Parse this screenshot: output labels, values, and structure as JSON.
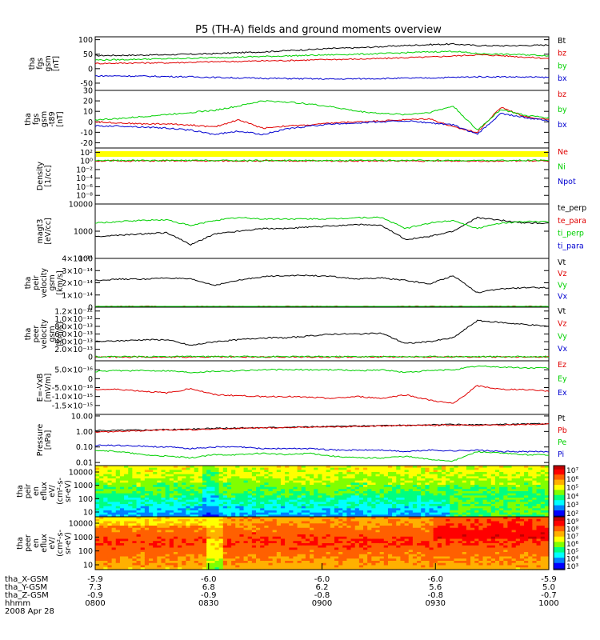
{
  "title": "P5 (TH-A) fields and ground moments overview",
  "footer": {
    "row_labels": [
      "tha_X-GSM",
      "tha_Y-GSM",
      "tha_Z-GSM",
      "hhmm",
      "2008 Apr 28"
    ],
    "columns": [
      {
        "x": "-5.9",
        "y": "7.3",
        "z": "-0.9",
        "t": "0800"
      },
      {
        "x": "-6.0",
        "y": "6.8",
        "z": "-0.9",
        "t": "0830"
      },
      {
        "x": "-6.0",
        "y": "6.2",
        "z": "-0.8",
        "t": "0900"
      },
      {
        "x": "-6.0",
        "y": "5.6",
        "z": "-0.8",
        "t": "0930"
      },
      {
        "x": "-5.9",
        "y": "5.0",
        "z": "-0.7",
        "t": "1000"
      }
    ]
  },
  "colors": {
    "black": "#000000",
    "red": "#e00000",
    "green": "#00d000",
    "blue": "#0000d0",
    "yellow": "#ffff00"
  },
  "chart_data": [
    {
      "type": "line",
      "ylabel": [
        "tha",
        "fgs",
        "gsm",
        "[nT]"
      ],
      "yticks": [
        "100",
        "50",
        "0",
        "-50"
      ],
      "ytick_values": [
        100,
        50,
        0,
        -50
      ],
      "ylim": [
        -75,
        110
      ],
      "series": [
        {
          "name": "Bt",
          "color": "#000000",
          "y": [
            45,
            46,
            47,
            48,
            50,
            52,
            55,
            58,
            62,
            66,
            70,
            72,
            76,
            80,
            83,
            85,
            80,
            79,
            80,
            82
          ]
        },
        {
          "name": "bz",
          "color": "#e00000",
          "y": [
            18,
            19,
            20,
            20,
            22,
            24,
            25,
            27,
            28,
            30,
            32,
            33,
            35,
            38,
            40,
            44,
            48,
            45,
            40,
            35
          ]
        },
        {
          "name": "by",
          "color": "#00d000",
          "y": [
            30,
            31,
            33,
            34,
            36,
            38,
            40,
            42,
            44,
            46,
            48,
            50,
            52,
            55,
            58,
            60,
            52,
            50,
            48,
            45
          ]
        },
        {
          "name": "bx",
          "color": "#0000d0",
          "y": [
            -25,
            -25,
            -26,
            -27,
            -28,
            -30,
            -32,
            -33,
            -34,
            -35,
            -36,
            -35,
            -34,
            -33,
            -32,
            -30,
            -28,
            -28,
            -29,
            -30
          ]
        }
      ]
    },
    {
      "type": "line",
      "ylabel": [
        "tha",
        "fgs",
        "gsm",
        "-t89",
        "[nT]"
      ],
      "yticks": [
        "30",
        "20",
        "10",
        "0",
        "-10",
        "-20"
      ],
      "ytick_values": [
        30,
        20,
        10,
        0,
        -10,
        -20
      ],
      "ylim": [
        -25,
        30
      ],
      "series": [
        {
          "name": "bz",
          "color": "#e00000",
          "y": [
            0,
            -1,
            -2,
            -2,
            -3,
            -5,
            2,
            -6,
            -4,
            -3,
            -1,
            0,
            1,
            2,
            3,
            -5,
            -10,
            14,
            5,
            2
          ]
        },
        {
          "name": "by",
          "color": "#00d000",
          "y": [
            2,
            3,
            5,
            7,
            9,
            11,
            15,
            20,
            19,
            17,
            14,
            10,
            8,
            7,
            9,
            15,
            -8,
            12,
            6,
            4
          ]
        },
        {
          "name": "bx",
          "color": "#0000d0",
          "y": [
            -4,
            -4,
            -5,
            -6,
            -8,
            -12,
            -9,
            -12,
            -7,
            -4,
            -2,
            -1,
            0,
            1,
            -1,
            -3,
            -12,
            8,
            4,
            1
          ]
        }
      ]
    },
    {
      "type": "line",
      "log": true,
      "ylabel": [
        "Density",
        "[1/cc]"
      ],
      "yticks": [
        "10²",
        "10⁰",
        "10⁻²",
        "10⁻⁴",
        "10⁻⁶",
        "10⁻⁸"
      ],
      "ytick_values": [
        2,
        0,
        -2,
        -4,
        -6,
        -8
      ],
      "ylim": [
        -10,
        3
      ],
      "series": [
        {
          "name": "Ne",
          "color": "#e00000",
          "y": [
            0,
            0,
            0,
            0,
            0,
            0,
            0,
            0,
            0,
            0,
            0,
            0,
            0,
            0,
            0,
            0,
            0,
            0,
            0,
            0
          ]
        },
        {
          "name": "Ni",
          "color": "#00d000",
          "y": [
            0.1,
            0.1,
            0.1,
            0.1,
            0.1,
            0.1,
            0.1,
            0.1,
            0.1,
            0.1,
            0.1,
            0.1,
            0.1,
            0.1,
            0.1,
            0.1,
            0.1,
            0.1,
            0.1,
            0.1
          ]
        },
        {
          "name": "Npot",
          "color": "#0000d0",
          "y": []
        }
      ]
    },
    {
      "type": "line",
      "log": true,
      "ylabel": [
        "magt3",
        "[eV/cc]"
      ],
      "yticks": [
        "10000",
        "1000",
        "100"
      ],
      "ytick_values": [
        4,
        3,
        2
      ],
      "ylim": [
        2,
        4
      ],
      "series": [
        {
          "name": "te_perp",
          "color": "#000000",
          "y": [
            2.8,
            2.85,
            2.9,
            2.95,
            2.5,
            2.9,
            3.0,
            3.1,
            3.1,
            3.15,
            3.2,
            3.25,
            3.2,
            2.7,
            2.8,
            3.0,
            3.5,
            3.4,
            3.3,
            3.3
          ]
        },
        {
          "name": "te_para",
          "color": "#e00000",
          "y": []
        },
        {
          "name": "ti_perp",
          "color": "#00d000",
          "y": [
            3.3,
            3.35,
            3.4,
            3.42,
            3.2,
            3.4,
            3.5,
            3.45,
            3.45,
            3.45,
            3.45,
            3.5,
            3.5,
            3.1,
            3.3,
            3.4,
            3.1,
            3.3,
            3.35,
            3.35
          ]
        },
        {
          "name": "ti_para",
          "color": "#0000d0",
          "y": []
        }
      ]
    },
    {
      "type": "line",
      "ylabel": [
        "tha",
        "peir",
        "velocity",
        "gsm",
        "[km/s]"
      ],
      "yticks": [
        "4×10⁻¹⁴",
        "3×10⁻¹⁴",
        "2×10⁻¹⁴",
        "1×10⁻¹⁴",
        "0"
      ],
      "ytick_values": [
        4,
        3,
        2,
        1,
        0
      ],
      "ylim": [
        0,
        4
      ],
      "series": [
        {
          "name": "Vt",
          "color": "#000000",
          "y": [
            2.2,
            2.3,
            2.3,
            2.4,
            2.3,
            1.8,
            2.2,
            2.5,
            2.6,
            2.6,
            2.5,
            2.3,
            2.4,
            2.2,
            1.9,
            2.6,
            1.2,
            1.5,
            1.6,
            1.6
          ]
        },
        {
          "name": "Vz",
          "color": "#e00000",
          "y": [
            0.05,
            0.05,
            0.05,
            0.05,
            0.05,
            0.05,
            0.05,
            0.05,
            0.05,
            0.05,
            0.05,
            0.05,
            0.05,
            0.05,
            0.05,
            0.05,
            0.05,
            0.05,
            0.05,
            0.05
          ]
        },
        {
          "name": "Vy",
          "color": "#00d000",
          "y": [
            0,
            0,
            0,
            0,
            0,
            0,
            0,
            0,
            0,
            0,
            0,
            0,
            0,
            0,
            0,
            0,
            0,
            0,
            0,
            0
          ]
        },
        {
          "name": "Vx",
          "color": "#0000d0",
          "y": []
        }
      ]
    },
    {
      "type": "line",
      "ylabel": [
        "tha",
        "peer",
        "velocity",
        "gsm",
        "[km/s]"
      ],
      "yticks": [
        "1.2×10⁻¹²",
        "1.0×10⁻¹²",
        "8.0×10⁻¹³",
        "6.0×10⁻¹³",
        "4.0×10⁻¹³",
        "2.0×10⁻¹³",
        "0"
      ],
      "ytick_values": [
        1.2,
        1.0,
        0.8,
        0.6,
        0.4,
        0.2,
        0
      ],
      "ylim": [
        -0.1,
        1.3
      ],
      "series": [
        {
          "name": "Vt",
          "color": "#000000",
          "y": [
            0.4,
            0.42,
            0.45,
            0.45,
            0.3,
            0.4,
            0.45,
            0.5,
            0.5,
            0.55,
            0.6,
            0.6,
            0.62,
            0.35,
            0.4,
            0.5,
            0.95,
            0.9,
            0.85,
            0.8
          ]
        },
        {
          "name": "Vz",
          "color": "#e00000",
          "y": [
            0,
            0,
            0,
            0,
            0,
            0,
            0,
            0,
            0,
            0,
            0,
            0,
            0,
            0,
            0,
            0,
            0,
            0,
            0,
            0
          ]
        },
        {
          "name": "Vy",
          "color": "#00d000",
          "y": [
            0.01,
            0.01,
            0.01,
            0.01,
            0.01,
            0.01,
            0.01,
            0.01,
            0.01,
            0.01,
            0.01,
            0.01,
            0.01,
            0.01,
            0.01,
            0.01,
            0.01,
            0.01,
            0.01,
            0.01
          ]
        },
        {
          "name": "Vx",
          "color": "#0000d0",
          "y": []
        }
      ]
    },
    {
      "type": "line",
      "ylabel": [
        "E=-VxB",
        "[mV/m]"
      ],
      "yticks": [
        "5.0×10⁻¹⁶",
        "0",
        "-5.0×10⁻¹⁶",
        "-1.0×10⁻¹⁵",
        "-1.5×10⁻¹⁵"
      ],
      "ytick_values": [
        0.5,
        0,
        -0.5,
        -1.0,
        -1.5
      ],
      "ylim": [
        -2.0,
        1.0
      ],
      "series": [
        {
          "name": "Ez",
          "color": "#e00000",
          "y": [
            -0.6,
            -0.6,
            -0.7,
            -0.8,
            -0.55,
            -0.9,
            -0.95,
            -1.0,
            -1.0,
            -1.05,
            -1.1,
            -1.0,
            -1.1,
            -0.9,
            -1.2,
            -1.4,
            -0.4,
            -0.6,
            -0.6,
            -0.7
          ]
        },
        {
          "name": "Ey",
          "color": "#00d000",
          "y": [
            0.4,
            0.45,
            0.45,
            0.45,
            0.35,
            0.42,
            0.45,
            0.5,
            0.5,
            0.5,
            0.5,
            0.45,
            0.5,
            0.35,
            0.45,
            0.5,
            0.7,
            0.65,
            0.6,
            0.6
          ]
        },
        {
          "name": "Ex",
          "color": "#0000d0",
          "y": []
        }
      ]
    },
    {
      "type": "line",
      "log": true,
      "ylabel": [
        "Pressure",
        "[nPa]"
      ],
      "yticks": [
        "10.00",
        "1.00",
        "0.10",
        "0.01"
      ],
      "ytick_values": [
        1,
        0,
        -1,
        -2
      ],
      "ylim": [
        -2.2,
        1.1
      ],
      "series": [
        {
          "name": "Pt",
          "color": "#000000",
          "y": [
            0.05,
            0.08,
            0.1,
            0.12,
            0.15,
            0.2,
            0.22,
            0.25,
            0.28,
            0.3,
            0.32,
            0.35,
            0.38,
            0.4,
            0.42,
            0.45,
            0.42,
            0.45,
            0.48,
            0.5
          ]
        },
        {
          "name": "Pb",
          "color": "#e00000",
          "y": [
            -0.05,
            0.0,
            0.05,
            0.1,
            0.12,
            0.15,
            0.2,
            0.22,
            0.25,
            0.28,
            0.3,
            0.32,
            0.35,
            0.38,
            0.4,
            0.42,
            0.4,
            0.42,
            0.45,
            0.48
          ]
        },
        {
          "name": "Pe",
          "color": "#00d000",
          "y": [
            -1.2,
            -1.3,
            -1.5,
            -1.6,
            -1.7,
            -1.5,
            -1.5,
            -1.4,
            -1.5,
            -1.4,
            -1.6,
            -1.7,
            -1.7,
            -1.6,
            -1.8,
            -1.9,
            -1.3,
            -1.4,
            -1.5,
            -1.5
          ]
        },
        {
          "name": "Pi",
          "color": "#0000d0",
          "y": [
            -0.9,
            -0.9,
            -0.95,
            -1.0,
            -1.1,
            -1.0,
            -1.0,
            -1.1,
            -1.1,
            -1.1,
            -1.2,
            -1.2,
            -1.2,
            -1.3,
            -1.2,
            -1.25,
            -1.2,
            -1.3,
            -1.3,
            -1.3
          ]
        }
      ]
    },
    {
      "type": "heatmap",
      "ylabel": [
        "tha",
        "peir",
        "en",
        "eflux",
        "eV/",
        "(cm²-s-",
        "sr-eV)"
      ],
      "yticks": [
        "10000",
        "1000",
        "100",
        "10"
      ],
      "colorbar_ticks": [
        "10⁷",
        "10⁶",
        "10⁵",
        "10⁴",
        "10³",
        "10²"
      ]
    },
    {
      "type": "heatmap",
      "ylabel": [
        "tha",
        "peer",
        "en",
        "eflux",
        "eV/",
        "(cm²-s-",
        "sr-eV)"
      ],
      "yticks": [
        "10000",
        "1000",
        "100",
        "10"
      ],
      "colorbar_ticks": [
        "10⁹",
        "10⁸",
        "10⁷",
        "10⁶",
        "10⁵",
        "10⁴",
        "10³"
      ]
    }
  ]
}
